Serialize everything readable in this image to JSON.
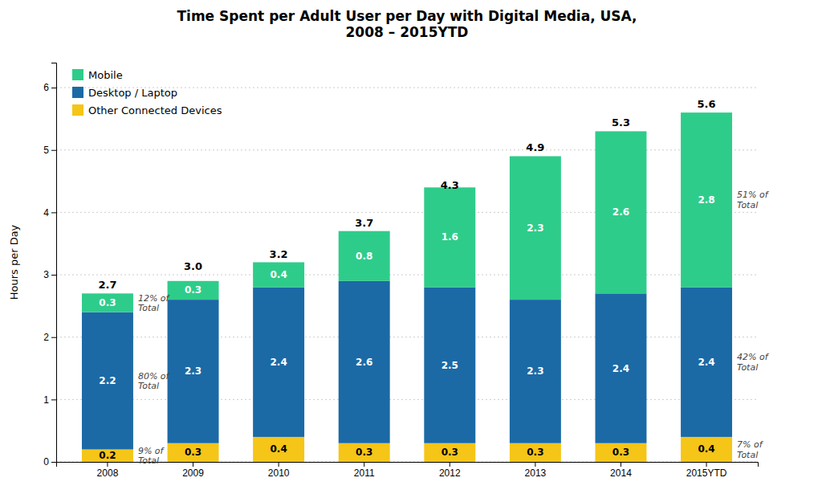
{
  "chart_data": {
    "type": "bar",
    "stacked": true,
    "title": "Time Spent per Adult User per Day with Digital Media, USA,\n2008 – 2015YTD",
    "ylabel": "Hours per Day",
    "categories": [
      "2008",
      "2009",
      "2010",
      "2011",
      "2012",
      "2013",
      "2014",
      "2015YTD"
    ],
    "series": [
      {
        "name": "Other Connected Devices",
        "color": "#F5C518",
        "values": [
          0.2,
          0.3,
          0.4,
          0.3,
          0.3,
          0.3,
          0.3,
          0.4
        ]
      },
      {
        "name": "Desktop / Laptop",
        "color": "#1B6AA5",
        "values": [
          2.2,
          2.3,
          2.4,
          2.6,
          2.5,
          2.3,
          2.4,
          2.4
        ]
      },
      {
        "name": "Mobile",
        "color": "#2ECC8A",
        "values": [
          0.3,
          0.3,
          0.4,
          0.8,
          1.6,
          2.3,
          2.6,
          2.8
        ]
      }
    ],
    "totals": [
      2.7,
      3.0,
      3.2,
      3.7,
      4.3,
      4.9,
      5.3,
      5.6
    ],
    "total_labels": [
      "2.7",
      "3.0",
      "3.2",
      "3.7",
      "4.3",
      "4.9",
      "5.3",
      "5.6"
    ],
    "annotations": [
      {
        "text": "12% of\nTotal",
        "x": "2008",
        "series": "Mobile"
      },
      {
        "text": "80% of\nTotal",
        "x": "2008",
        "series": "Desktop / Laptop"
      },
      {
        "text": "9% of\nTotal",
        "x": "2008",
        "series": "Other Connected Devices"
      },
      {
        "text": "51% of\nTotal",
        "x": "2015YTD",
        "series": "Mobile"
      },
      {
        "text": "42% of\nTotal",
        "x": "2015YTD",
        "series": "Desktop / Laptop"
      },
      {
        "text": "7% of\nTotal",
        "x": "2015YTD",
        "series": "Other Connected Devices"
      }
    ],
    "ylim": [
      0,
      6.4
    ],
    "yticks": [
      0,
      1,
      2,
      3,
      4,
      5,
      6
    ],
    "grid": true,
    "legend": "upper-left",
    "data_labels": true
  }
}
